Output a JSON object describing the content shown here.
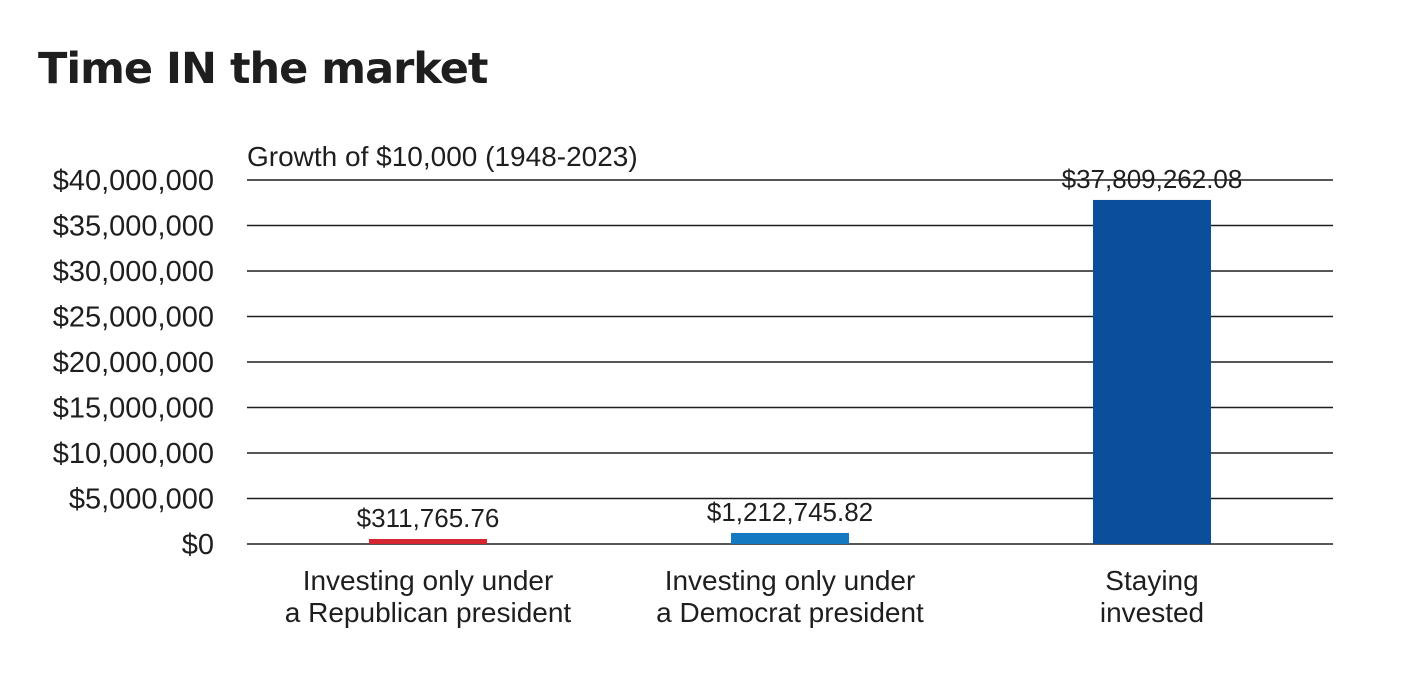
{
  "title": "Time IN the market",
  "chart_data": {
    "type": "bar",
    "subtitle": "Growth of $10,000 (1948-2023)",
    "categories": [
      [
        "Investing only under",
        "a Republican president"
      ],
      [
        "Investing only under",
        "a Democrat president"
      ],
      [
        "Staying",
        "invested"
      ]
    ],
    "values": [
      311765.76,
      1212745.82,
      37809262.08
    ],
    "data_labels": [
      "$311,765.76",
      "$1,212,745.82",
      "$37,809,262.08"
    ],
    "colors": [
      "#d62631",
      "#1479c0",
      "#0a4e9c"
    ],
    "ylim": [
      0,
      40000000
    ],
    "yticks": [
      0,
      5000000,
      10000000,
      15000000,
      20000000,
      25000000,
      30000000,
      35000000,
      40000000
    ],
    "ytick_labels": [
      "$0",
      "$5,000,000",
      "$10,000,000",
      "$15,000,000",
      "$20,000,000",
      "$25,000,000",
      "$30,000,000",
      "$35,000,000",
      "$40,000,000"
    ],
    "grid": true,
    "xlabel": "",
    "ylabel": ""
  }
}
